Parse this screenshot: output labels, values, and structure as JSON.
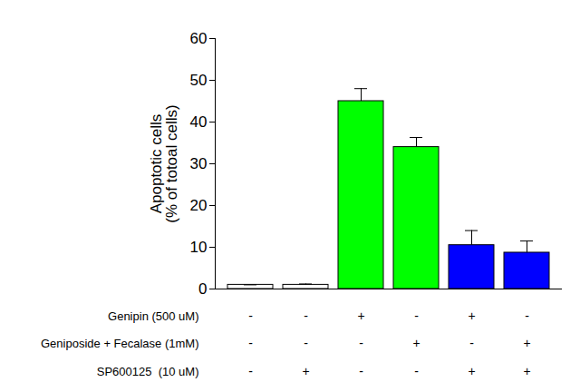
{
  "chart_data": {
    "type": "bar",
    "categories": [
      null,
      null,
      null,
      null,
      null,
      null
    ],
    "values": [
      1,
      1,
      45,
      34,
      10.5,
      8.7
    ],
    "errors": [
      0,
      0.2,
      3,
      2.3,
      3.5,
      2.8
    ],
    "colors": [
      "#ffffff",
      "#ffffff",
      "#00ff00",
      "#00ff00",
      "#0000ff",
      "#0000ff"
    ],
    "ylabel": "Apoptotic cells\n(% of totoal cells)",
    "ylim": [
      0,
      60
    ],
    "yticks": [
      0,
      10,
      20,
      30,
      40,
      50,
      60
    ],
    "treatments": [
      {
        "label": "Genipin (500 uM)",
        "values": [
          "-",
          "-",
          "+",
          "-",
          "+",
          "-"
        ]
      },
      {
        "label": "Geniposide + Fecalase (1mM)",
        "values": [
          "-",
          "-",
          "-",
          "+",
          "-",
          "+"
        ]
      },
      {
        "label": "SP600125  (10 uM)",
        "values": [
          "-",
          "+",
          "-",
          "-",
          "+",
          "+"
        ]
      }
    ]
  }
}
